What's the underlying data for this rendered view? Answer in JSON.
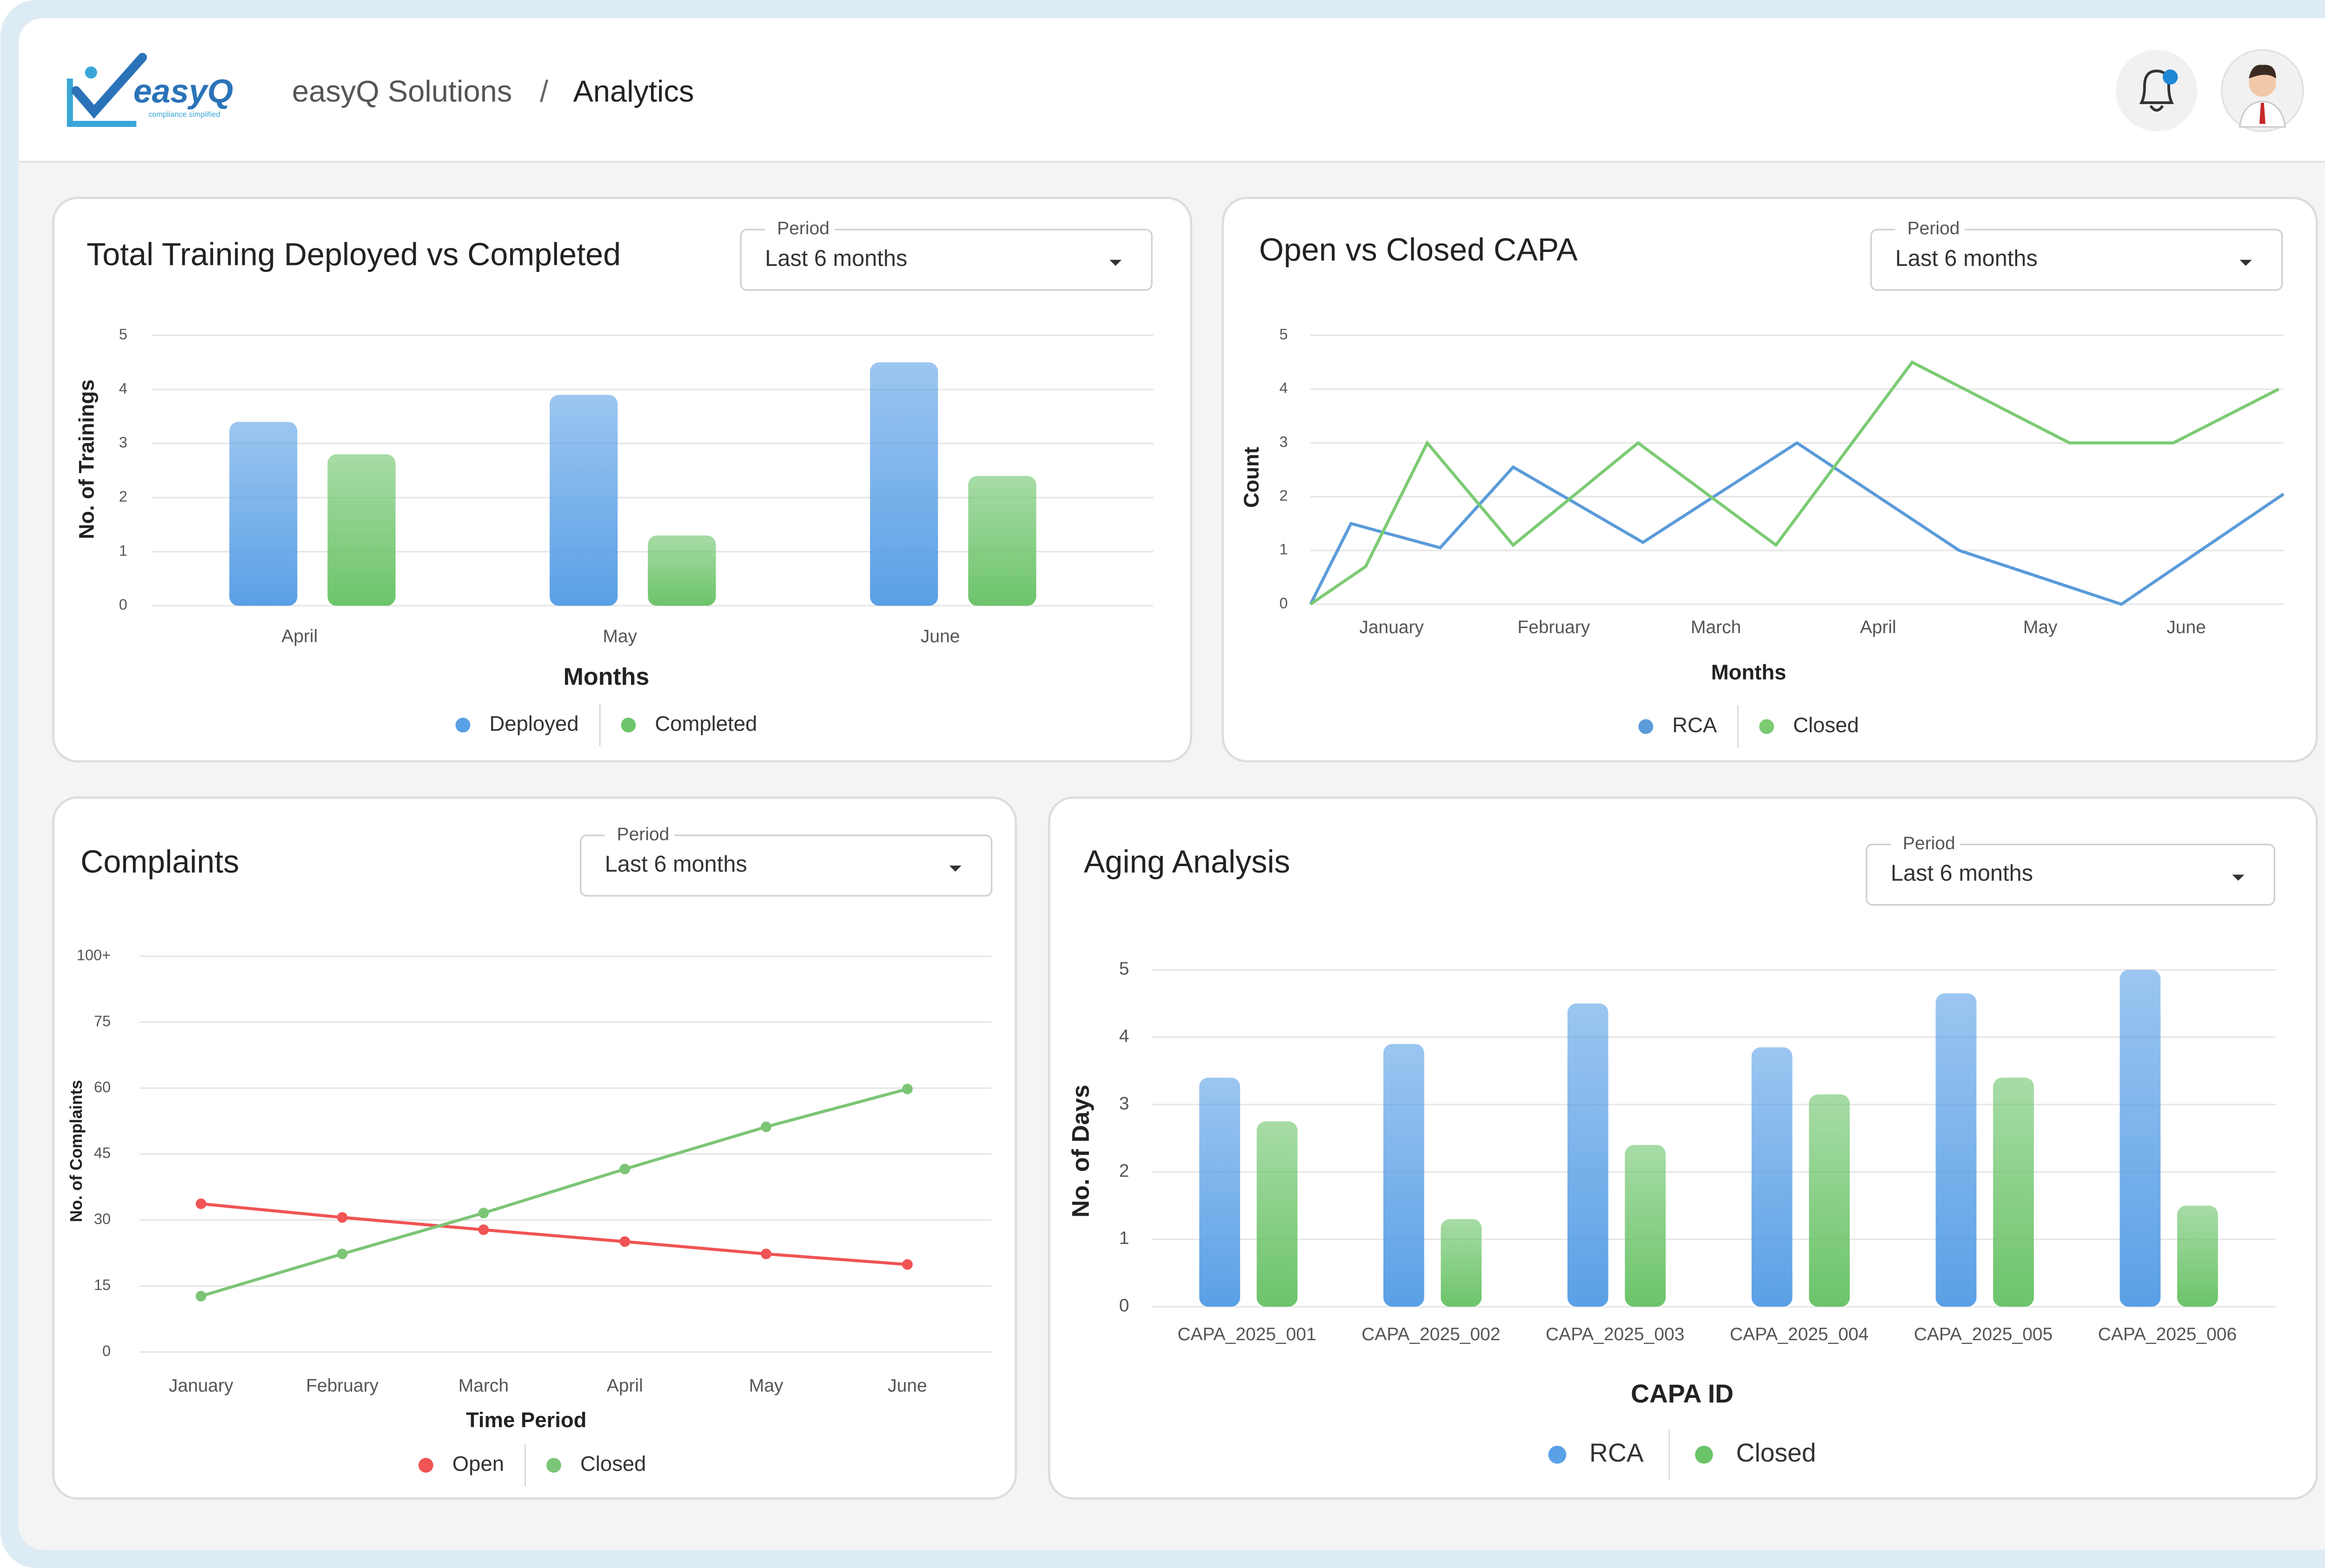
{
  "header": {
    "brand": "easyQ",
    "tagline": "compliance simplified",
    "breadcrumb": [
      "easyQ Solutions",
      "Analytics"
    ],
    "separator": "/"
  },
  "chart_data": [
    {
      "type": "bar",
      "title": "Total Training Deployed vs Completed",
      "period_label": "Period",
      "period": "Last 6 months",
      "categories": [
        "April",
        "May",
        "June"
      ],
      "series": [
        {
          "name": "Deployed",
          "color": "#5aa0e6",
          "values": [
            3.4,
            3.9,
            4.5
          ]
        },
        {
          "name": "Completed",
          "color": "#6cc46a",
          "values": [
            2.8,
            1.3,
            2.4
          ]
        }
      ],
      "ylim": [
        0,
        5
      ],
      "yticks": [
        0,
        1,
        2,
        3,
        4,
        5
      ],
      "xlabel": "Months",
      "ylabel": "No. of Trainings",
      "grid": true
    },
    {
      "type": "line",
      "title": "Open vs Closed CAPA",
      "period_label": "Period",
      "period": "Last 6 months",
      "xlim": [
        0,
        6
      ],
      "xticks": [
        {
          "value": 0.5,
          "label": "January"
        },
        {
          "value": 1.5,
          "label": "February"
        },
        {
          "value": 2.5,
          "label": "March"
        },
        {
          "value": 3.5,
          "label": "April"
        },
        {
          "value": 4.5,
          "label": "May"
        },
        {
          "value": 5.4,
          "label": "June"
        }
      ],
      "series": [
        {
          "name": "RCA",
          "color": "#5b9bd9",
          "x": [
            0,
            0.25,
            0.8,
            1.25,
            2.05,
            3,
            4,
            5,
            6
          ],
          "values": [
            0,
            1.5,
            1.05,
            2.55,
            1.15,
            3,
            1,
            0,
            2.05
          ]
        },
        {
          "name": "Closed",
          "color": "#7ccb74",
          "x": [
            0,
            0.34,
            0.72,
            1.25,
            2.02,
            2.87,
            3.71,
            4.68,
            5.32,
            5.97
          ],
          "values": [
            0,
            0.7,
            3,
            1.1,
            3,
            1.1,
            4.5,
            3,
            3,
            4
          ]
        }
      ],
      "ylim": [
        0,
        5
      ],
      "yticks": [
        0,
        1,
        2,
        3,
        4,
        5
      ],
      "xlabel": "Months",
      "ylabel": "Count",
      "grid": true
    },
    {
      "type": "line",
      "title": "Complaints",
      "period_label": "Period",
      "period": "Last 6 months",
      "categories": [
        "January",
        "February",
        "March",
        "April",
        "May",
        "June"
      ],
      "series": [
        {
          "name": "Open",
          "color": "#f05454",
          "values": [
            33.7,
            30.6,
            27.8,
            25.1,
            22.3,
            19.9
          ]
        },
        {
          "name": "Closed",
          "color": "#7cc576",
          "values": [
            12.7,
            22.3,
            31.6,
            41.6,
            51.2,
            59.8
          ]
        }
      ],
      "ylim": [
        0,
        90
      ],
      "yticks": [
        0,
        15,
        30,
        45,
        60,
        75,
        {
          "value": 90,
          "label": "100+"
        }
      ],
      "xlabel": "Time Period",
      "ylabel": "No. of Complaints",
      "grid": true,
      "markers": true
    },
    {
      "type": "bar",
      "title": "Aging Analysis",
      "period_label": "Period",
      "period": "Last 6 months",
      "categories": [
        "CAPA_2025_001",
        "CAPA_2025_002",
        "CAPA_2025_003",
        "CAPA_2025_004",
        "CAPA_2025_005",
        "CAPA_2025_006"
      ],
      "series": [
        {
          "name": "RCA",
          "color": "#5aa0e6",
          "values": [
            3.4,
            3.9,
            4.5,
            3.85,
            4.65,
            5
          ]
        },
        {
          "name": "Closed",
          "color": "#6cc46a",
          "values": [
            2.75,
            1.3,
            2.4,
            3.15,
            3.4,
            1.5
          ]
        }
      ],
      "ylim": [
        0,
        5
      ],
      "yticks": [
        0,
        1,
        2,
        3,
        4,
        5
      ],
      "xlabel": "CAPA ID",
      "ylabel": "No. of Days",
      "grid": true
    }
  ]
}
